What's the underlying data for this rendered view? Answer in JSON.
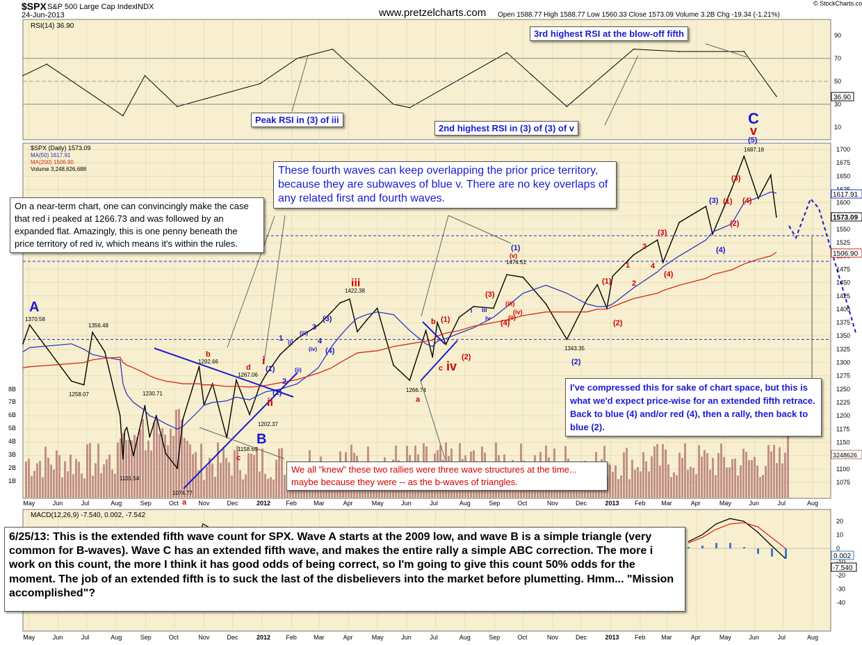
{
  "header": {
    "ticker": "$SPX",
    "name": "S&P 500 Large Cap Index",
    "exchange": "INDX",
    "date": "24-Jun-2013",
    "site": "www.pretzelcharts.com",
    "ohlc": "Open 1588.77  High 1588.77  Low 1560.33  Close 1573.09  Volume 3.2B  Chg -19.34 (-1.21%)",
    "copyright": "© StockCharts.com"
  },
  "colors": {
    "panel_bg": "#f7efcf",
    "price_line": "#000000",
    "ma50": "#1b2dc8",
    "ma200": "#d22b12",
    "volume": "#b07070",
    "wave_blue": "#1a1ad0",
    "wave_red": "#d20000",
    "rsi_line": "#000000",
    "macd_line": "#000000",
    "macd_signal": "#e00000",
    "macd_hist": "#3b78c8",
    "dashed_level": "#2233cc"
  },
  "rsi_panel": {
    "label": "RSI(14) 36.90",
    "ticks": [
      "90",
      "70",
      "50",
      "30",
      "10"
    ],
    "current": "36.90"
  },
  "price_panel": {
    "legend": [
      "$SPX (Daily) 1573.09",
      "MA(50) 1617.91",
      "MA(200) 1506.90",
      "Volume 3,248,626,688"
    ],
    "ticks": [
      "1700",
      "1675",
      "1650",
      "1625",
      "1600",
      "1575",
      "1550",
      "1525",
      "1500",
      "1475",
      "1450",
      "1425",
      "1400",
      "1375",
      "1350",
      "1325",
      "1300",
      "1275",
      "1250",
      "1225",
      "1200",
      "1175",
      "1150",
      "1125",
      "1100",
      "1075"
    ],
    "current_labels": [
      "1617.91",
      "1573.09",
      "1506.90",
      "3248626"
    ],
    "vol_ticks": [
      "8B",
      "7B",
      "6B",
      "5B",
      "4B",
      "3B",
      "2B",
      "1B"
    ]
  },
  "macd_panel": {
    "label": "MACD(12,26,9) -7.540, 0.002, -7.542",
    "ticks": [
      "20",
      "10",
      "0",
      "-10",
      "-20",
      "-30",
      "-40"
    ],
    "current_labels": [
      "0.002",
      "-7.540"
    ]
  },
  "x_axis": [
    "May",
    "Jun",
    "Jul",
    "Aug",
    "Sep",
    "Oct",
    "Nov",
    "Dec",
    "2012",
    "Feb",
    "Mar",
    "Apr",
    "May",
    "Jun",
    "Jul",
    "Aug",
    "Sep",
    "Oct",
    "Nov",
    "Dec",
    "2013",
    "Feb",
    "Mar",
    "Apr",
    "May",
    "Jun",
    "Jul",
    "Aug"
  ],
  "chart_data": {
    "type": "line",
    "title": "$SPX S&P 500 Large Cap Index INDX",
    "x": [
      "2011-04-25",
      "2011-05-02",
      "2011-06-15",
      "2011-06-28",
      "2011-07-07",
      "2011-07-20",
      "2011-08-05",
      "2011-08-08",
      "2011-08-10",
      "2011-08-12",
      "2011-08-19",
      "2011-08-31",
      "2011-09-05",
      "2011-09-12",
      "2011-09-22",
      "2011-10-04",
      "2011-10-10",
      "2011-10-27",
      "2011-11-01",
      "2011-11-10",
      "2011-11-25",
      "2011-12-05",
      "2011-12-19",
      "2011-12-30",
      "2012-01-05",
      "2012-01-20",
      "2012-02-07",
      "2012-02-29",
      "2012-03-14",
      "2012-03-23",
      "2012-04-02",
      "2012-04-10",
      "2012-04-20",
      "2012-05-01",
      "2012-05-18",
      "2012-06-04",
      "2012-06-21",
      "2012-06-28",
      "2012-07-03",
      "2012-07-12",
      "2012-07-26",
      "2012-08-10",
      "2012-08-31",
      "2012-09-14",
      "2012-10-01",
      "2012-10-25",
      "2012-11-16",
      "2012-12-07",
      "2012-12-18",
      "2012-12-28",
      "2013-01-03",
      "2013-01-25",
      "2013-02-19",
      "2013-02-25",
      "2013-03-14",
      "2013-04-11",
      "2013-04-18",
      "2013-05-08",
      "2013-05-21",
      "2013-06-05",
      "2013-06-18",
      "2013-06-24"
    ],
    "series": [
      {
        "name": "$SPX (Daily) 1573.09",
        "values": [
          1335,
          1370.58,
          1265,
          1258.07,
          1356.48,
          1320,
          1200,
          1119,
          1172,
          1178,
          1125,
          1219,
          1160,
          1200,
          1129,
          1101.54,
          1194,
          1292.66,
          1220,
          1260,
          1158.66,
          1267.06,
          1202.37,
          1258,
          1277,
          1315,
          1345,
          1370,
          1395,
          1412,
          1419.04,
          1358,
          1380,
          1402,
          1295,
          1266.74,
          1360,
          1310,
          1375,
          1334,
          1385,
          1405,
          1402,
          1465,
          1460,
          1410,
          1343.35,
          1418,
          1446,
          1402,
          1462,
          1502,
          1530,
          1488,
          1563,
          1593,
          1541,
          1626,
          1687.18,
          1608,
          1652,
          1573.09
        ]
      },
      {
        "name": "MA(50) 1617.91",
        "values": [
          1320,
          1328,
          1335,
          1325,
          1315,
          1310,
          1305,
          1260,
          1250,
          1240,
          1225,
          1210,
          1200,
          1195,
          1185,
          1175,
          1180,
          1210,
          1220,
          1225,
          1228,
          1235,
          1230,
          1240,
          1245,
          1250,
          1260,
          1290,
          1330,
          1350,
          1370,
          1383,
          1390,
          1395,
          1390,
          1360,
          1335,
          1330,
          1340,
          1345,
          1355,
          1365,
          1385,
          1405,
          1430,
          1445,
          1430,
          1410,
          1405,
          1405,
          1410,
          1440,
          1470,
          1480,
          1500,
          1530,
          1545,
          1560,
          1600,
          1610,
          1620,
          1617.91
        ]
      },
      {
        "name": "MA(200) 1506.90",
        "values": [
          1290,
          1292,
          1298,
          1300,
          1305,
          1308,
          1310,
          1300,
          1298,
          1295,
          1290,
          1280,
          1275,
          1270,
          1265,
          1262,
          1260,
          1260,
          1258,
          1258,
          1255,
          1255,
          1254,
          1255,
          1257,
          1262,
          1268,
          1280,
          1290,
          1300,
          1310,
          1318,
          1320,
          1322,
          1330,
          1335,
          1340,
          1342,
          1350,
          1355,
          1360,
          1368,
          1375,
          1380,
          1388,
          1395,
          1395,
          1395,
          1400,
          1400,
          1405,
          1420,
          1430,
          1435,
          1445,
          1458,
          1465,
          1474,
          1485,
          1494,
          1500,
          1506.9
        ]
      }
    ],
    "ylabel": "",
    "ylim": [
      1060,
      1720
    ],
    "rsi": {
      "name": "RSI(14)",
      "ylim": [
        0,
        100
      ],
      "x": [
        "2011-04-25",
        "2011-05-20",
        "2011-08-08",
        "2011-08-31",
        "2011-10-04",
        "2011-12-30",
        "2012-02-07",
        "2012-03-15",
        "2012-05-18",
        "2012-06-04",
        "2012-09-14",
        "2012-11-16",
        "2013-01-25",
        "2013-03-14",
        "2013-05-21",
        "2013-06-24"
      ],
      "values": [
        55,
        65,
        20,
        55,
        28,
        48,
        70,
        78,
        30,
        27,
        75,
        28,
        78,
        76,
        76,
        36.9
      ]
    },
    "macd": {
      "name": "MACD(12,26,9)",
      "ylim": [
        -45,
        25
      ],
      "x": [
        "2011-04-25",
        "2011-05-20",
        "2011-07-05",
        "2011-08-08",
        "2011-09-06",
        "2011-10-04",
        "2011-10-31",
        "2012-01-05"
      ],
      "values": [
        -5,
        -2,
        5,
        -40,
        -20,
        -35,
        18,
        -8
      ],
      "signal": [
        -4,
        -3,
        3,
        -35,
        -25,
        -30,
        12,
        -5
      ],
      "current": {
        "macd": -7.54,
        "signal": 0.002,
        "hist": -7.542
      }
    }
  },
  "levels": {
    "dashed_price": [
      1538,
      1490,
      1343.35
    ]
  },
  "price_labels": [
    "1370.58",
    "1356.48",
    "1258.07",
    "1101.54",
    "1230.71",
    "1074.77",
    "1292.66",
    "1267.06",
    "1158.66",
    "1202.37",
    "1422.38",
    "1266.74",
    "1474.51",
    "1343.35",
    "1687.18"
  ],
  "wave_labels": {
    "A": "A",
    "B": "B",
    "C": "C",
    "red_i": "i",
    "red_ii": "ii",
    "red_iii": "iii",
    "red_iv": "iv",
    "red_v": "v",
    "a1": "a",
    "b": "b",
    "c": "c",
    "d": "d",
    "a2": "a",
    "b2": "b",
    "c2": "c",
    "a3": "a",
    "blue_1": "(1)",
    "blue_2": "(2)",
    "blue_3": "(3)",
    "blue_4": "(4)",
    "blue_5": "(5)",
    "p1": "(1)",
    "p2": "(2)",
    "p3": "(3)",
    "p4": "(4)",
    "r1": "(1)",
    "r2": "(2)",
    "r3": "(3)",
    "r4": "(4)",
    "r5": "(5)",
    "rv": "(v)",
    "riii": "(iii)",
    "riv": "(iv)",
    "rii": "(ii)",
    "ri": "(i)",
    "n1": "1",
    "n2": "2",
    "n3": "3",
    "n4": "4",
    "sm_i": "(i)",
    "sm_ii": "(ii)",
    "sm_iii": "(iii)",
    "sm_iv": "(iv)",
    "sm_2": "2",
    "sm_3": "3",
    "sm_4": "4",
    "iii_sm": "iii",
    "iv_sm": "iv",
    "i_sm": "i"
  },
  "annotations": {
    "rsi_blowoff": "3rd highest RSI at the blow-off fifth",
    "rsi_peak": "Peak RSI in (3) of iii",
    "rsi_second": "2nd highest RSI in (3) of (3) of v",
    "fourth_waves": "These fourth waves can keep overlapping the prior price territory, because they are subwaves of blue v.  There are no key overlaps of any related first and fourth waves.",
    "near_term": "On a near-term chart, one can convincingly make the case that red i peaked at 1266.73 and was followed by an expanded flat.  Amazingly, this is one penny beneath the price territory of red iv, which means it's within the rules.",
    "compressed": "I've compressed this for sake of chart space, but this is what we'd expect price-wise for an extended fifth retrace.  Back to blue (4) and/or red (4), then a rally, then back to blue (2).",
    "knew": "We all \"knew\" these two rallies were three wave structures at the time... maybe because they were -- as the b-waves of triangles.",
    "main": "6/25/13:  This is the extended fifth wave count for SPX.  Wave A starts at the 2009 low, and wave B is a simple triangle (very common for B-waves).  Wave C has an extended fifth wave, and makes the entire rally a simple ABC correction.  The more i work on this count, the more I think it has good odds of being correct, so I'm going to give this count 50% odds for the moment.  The job of an extended fifth is to suck the last of the disbelievers into the market before plumetting.  Hmm...  \"Mission accomplished\"?"
  }
}
